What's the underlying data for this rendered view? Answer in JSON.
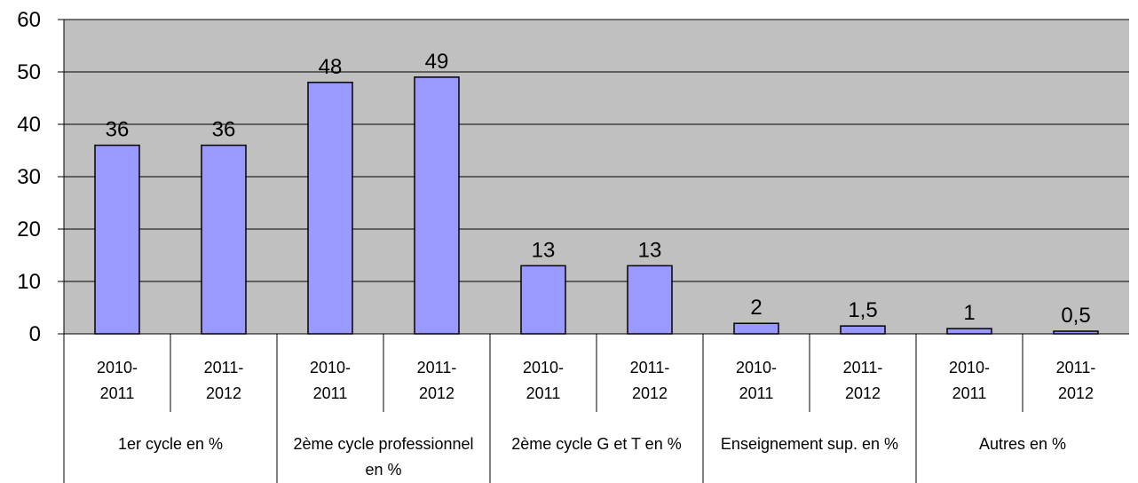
{
  "chart_data": {
    "type": "bar",
    "groups": [
      "1er cycle en %",
      "2ème cycle professionnel en %",
      "2ème cycle G et T en %",
      "Enseignement sup. en %",
      "Autres en %"
    ],
    "categories": [
      "2010-2011",
      "2011-2012",
      "2010-2011",
      "2011-2012",
      "2010-2011",
      "2011-2012",
      "2010-2011",
      "2011-2012",
      "2010-2011",
      "2011-2012"
    ],
    "values": [
      36,
      36,
      48,
      49,
      13,
      13,
      2,
      1.5,
      1,
      0.5
    ],
    "value_labels": [
      "36",
      "36",
      "48",
      "49",
      "13",
      "13",
      "2",
      "1,5",
      "1",
      "0,5"
    ],
    "color": "#9999ff",
    "background": "#c0c0c0",
    "ylim": [
      0,
      60
    ],
    "yticks": [
      0,
      10,
      20,
      30,
      40,
      50,
      60
    ],
    "grid": true
  }
}
